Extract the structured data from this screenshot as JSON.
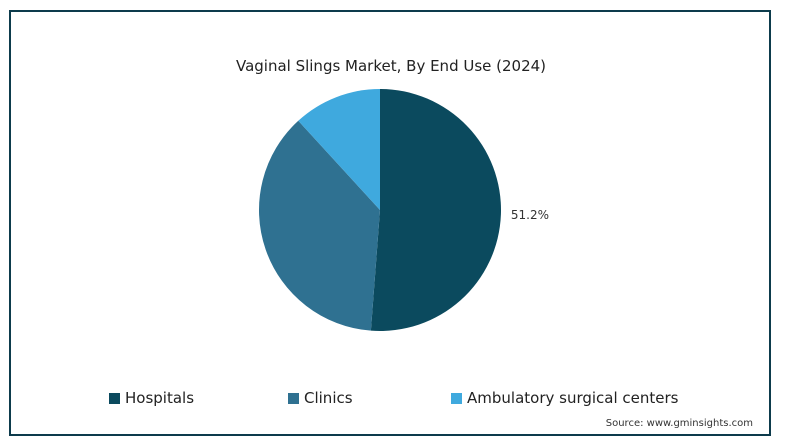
{
  "chart_data": {
    "type": "pie",
    "title": "Vaginal Slings Market, By End Use (2024)",
    "slices": [
      {
        "label": "Hospitals",
        "value": 51.2,
        "color": "#0b4a5e",
        "data_label": "51.2%"
      },
      {
        "label": "Clinics",
        "value": 37.0,
        "color": "#2f7191",
        "data_label": ""
      },
      {
        "label": "Ambulatory surgical centers",
        "value": 11.8,
        "color": "#3fa9de",
        "data_label": ""
      }
    ],
    "legend_position": "bottom",
    "start_angle_deg": 0,
    "direction": "clockwise"
  },
  "legend": {
    "items": [
      {
        "label": "Hospitals",
        "color": "#0b4a5e"
      },
      {
        "label": "Clinics",
        "color": "#2f7191"
      },
      {
        "label": "Ambulatory surgical centers",
        "color": "#3fa9de"
      }
    ]
  },
  "source": "Source: www.gminsights.com"
}
